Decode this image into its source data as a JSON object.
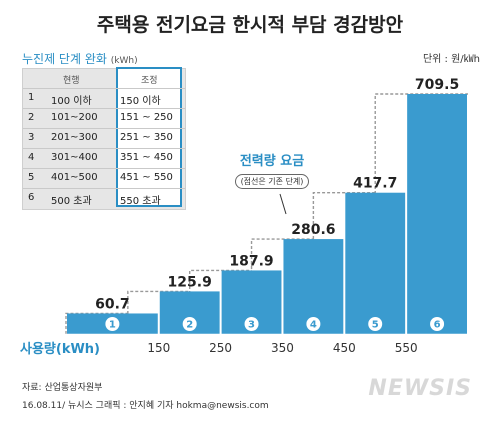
{
  "title": "주택용 전기요금 한시적 부담 경감방안",
  "unit_label": "단위 : 원/㎾h",
  "table": {
    "title": "누진제 단계 완화",
    "unit": "(kWh)",
    "headers": {
      "current": "현행",
      "adjusted": "조정"
    },
    "rows": [
      {
        "step": "1",
        "current": "100 이하",
        "adjusted": "150 이하"
      },
      {
        "step": "2",
        "current": "101~200",
        "adjusted": "151 ~ 250"
      },
      {
        "step": "3",
        "current": "201~300",
        "adjusted": "251 ~ 350"
      },
      {
        "step": "4",
        "current": "301~400",
        "adjusted": "351 ~ 450"
      },
      {
        "step": "5",
        "current": "401~500",
        "adjusted": "451 ~ 550"
      },
      {
        "step": "6",
        "current": "500 초과",
        "adjusted": "550 초과"
      }
    ]
  },
  "annotation": {
    "main": "전력량 요금",
    "sub": "(점선은 기존 단계)"
  },
  "source": "자료: 산업통상자원부",
  "credit": "16.08.11/ 뉴시스 그래픽 : 안지혜 기자 hokma@newsis.com",
  "logo": "NEWSIS",
  "colors": {
    "bar": "#3a9bcf",
    "accent": "#2a8ec4",
    "dash": "#999999"
  },
  "chart_data": {
    "type": "bar",
    "title": "주택용 전기요금 한시적 부담 경감방안",
    "xlabel": "사용량(kWh)",
    "ylabel": "",
    "unit": "원/㎾h",
    "categories": [
      "1",
      "2",
      "3",
      "4",
      "5",
      "6"
    ],
    "step_labels": [
      "①",
      "②",
      "③",
      "④",
      "⑤",
      "⑥"
    ],
    "values": [
      60.7,
      125.9,
      187.9,
      280.6,
      417.7,
      709.5
    ],
    "value_labels": [
      "60.7",
      "125.9",
      "187.9",
      "280.6",
      "417.7",
      "709.5"
    ],
    "x_ticks": [
      "150",
      "250",
      "350",
      "450",
      "550"
    ],
    "boundaries_new": [
      150,
      250,
      350,
      450,
      550
    ],
    "boundaries_old": [
      100,
      200,
      300,
      400,
      500
    ],
    "x_range": [
      0,
      650
    ],
    "ylim": [
      0,
      709.5
    ],
    "grid": false,
    "legend": "none"
  }
}
